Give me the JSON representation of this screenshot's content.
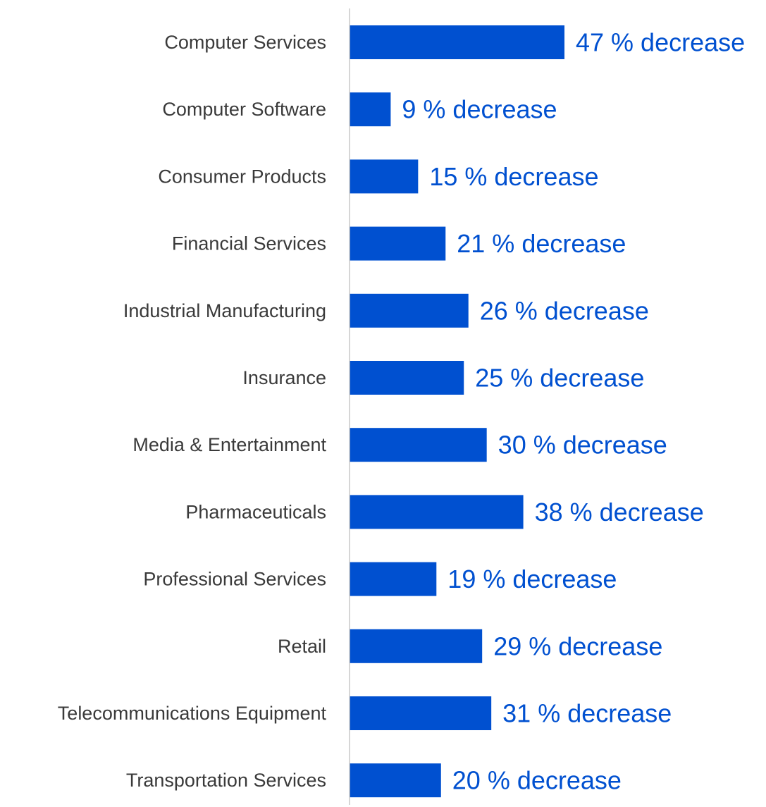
{
  "chart_data": {
    "type": "bar",
    "orientation": "horizontal",
    "categories": [
      "Computer Services",
      "Computer Software",
      "Consumer Products",
      "Financial Services",
      "Industrial Manufacturing",
      "Insurance",
      "Media & Entertainment",
      "Pharmaceuticals",
      "Professional Services",
      "Retail",
      "Telecommunications Equipment",
      "Transportation Services"
    ],
    "values": [
      47,
      9,
      15,
      21,
      26,
      25,
      30,
      38,
      19,
      29,
      31,
      20
    ],
    "data_labels": [
      "47 % decrease",
      "9 % decrease",
      "15 % decrease",
      "21 % decrease",
      "26 % decrease",
      "25 % decrease",
      "30 % decrease",
      "38 % decrease",
      "19 % decrease",
      "29 % decrease",
      "31 % decrease",
      "20 % decrease"
    ],
    "title": "",
    "xlabel": "",
    "ylabel": "",
    "xlim": [
      0,
      47
    ],
    "grid": false,
    "legend": "none",
    "colors": {
      "bar": "#0050d0",
      "label": "#0050d0",
      "category_text": "#3a3a3a",
      "axis": "#c8c8c8"
    }
  }
}
